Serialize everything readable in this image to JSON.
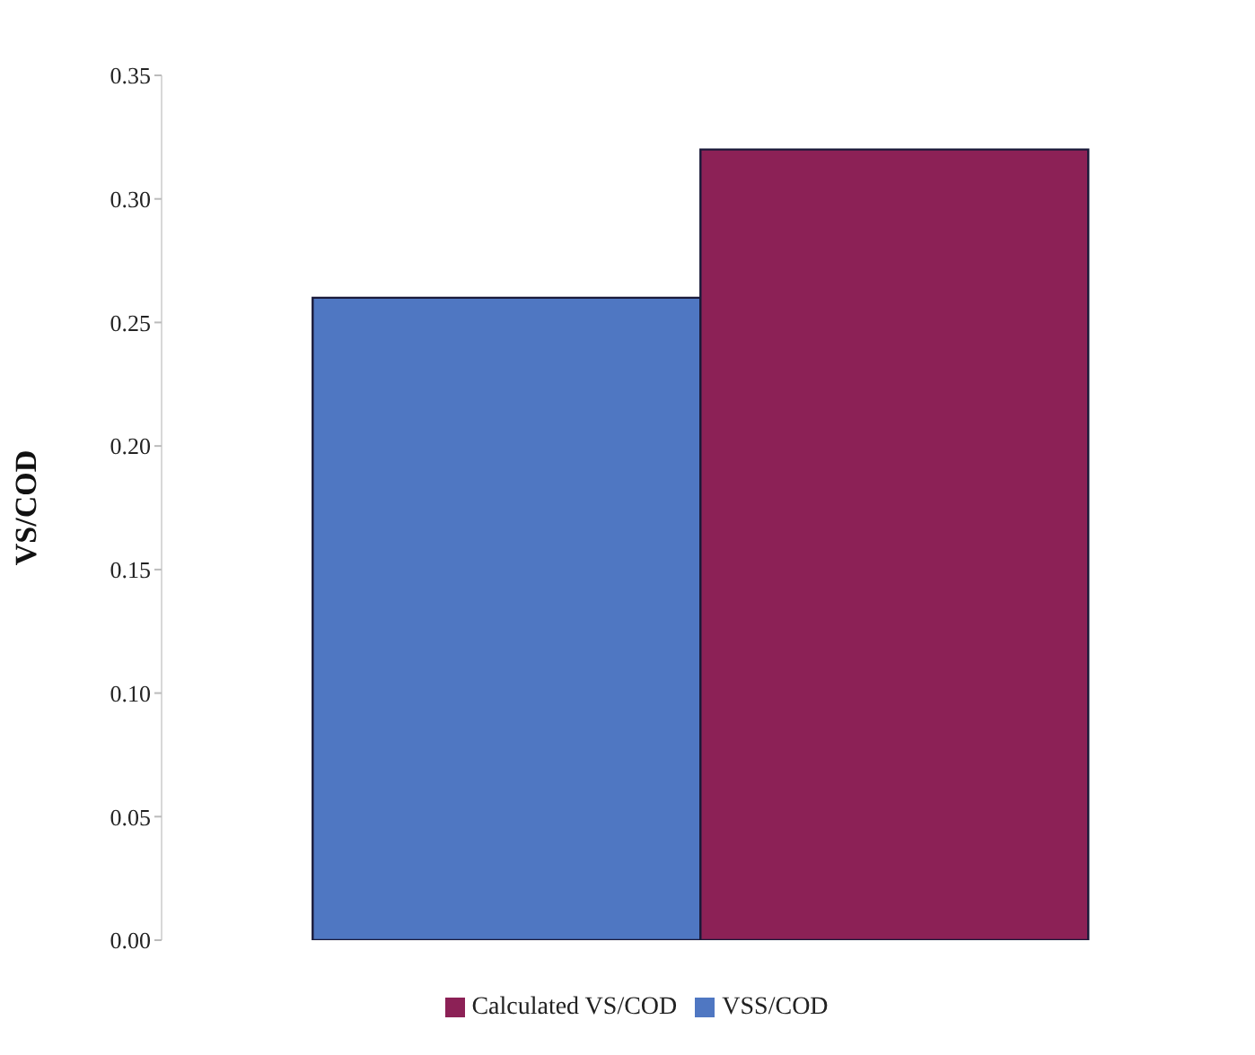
{
  "chart_data": {
    "type": "bar",
    "ylabel": "VS/COD",
    "categories": [
      null
    ],
    "series": [
      {
        "name": "VSS/COD",
        "color": "#4f77c2",
        "values": [
          0.26
        ]
      },
      {
        "name": "Calculated VS/COD",
        "color": "#8c2156",
        "values": [
          0.32
        ]
      }
    ],
    "ylim": [
      0,
      0.35
    ],
    "yticks": [
      {
        "value": 0,
        "label": "0.00"
      },
      {
        "value": 0.05,
        "label": "0.05"
      },
      {
        "value": 0.1,
        "label": "0.10"
      },
      {
        "value": 0.15,
        "label": "0.15"
      },
      {
        "value": 0.2,
        "label": "0.20"
      },
      {
        "value": 0.25,
        "label": "0.25"
      },
      {
        "value": 0.3,
        "label": "0.30"
      },
      {
        "value": 0.35,
        "label": "0.35"
      }
    ],
    "grid": false,
    "legend": "bottom"
  }
}
